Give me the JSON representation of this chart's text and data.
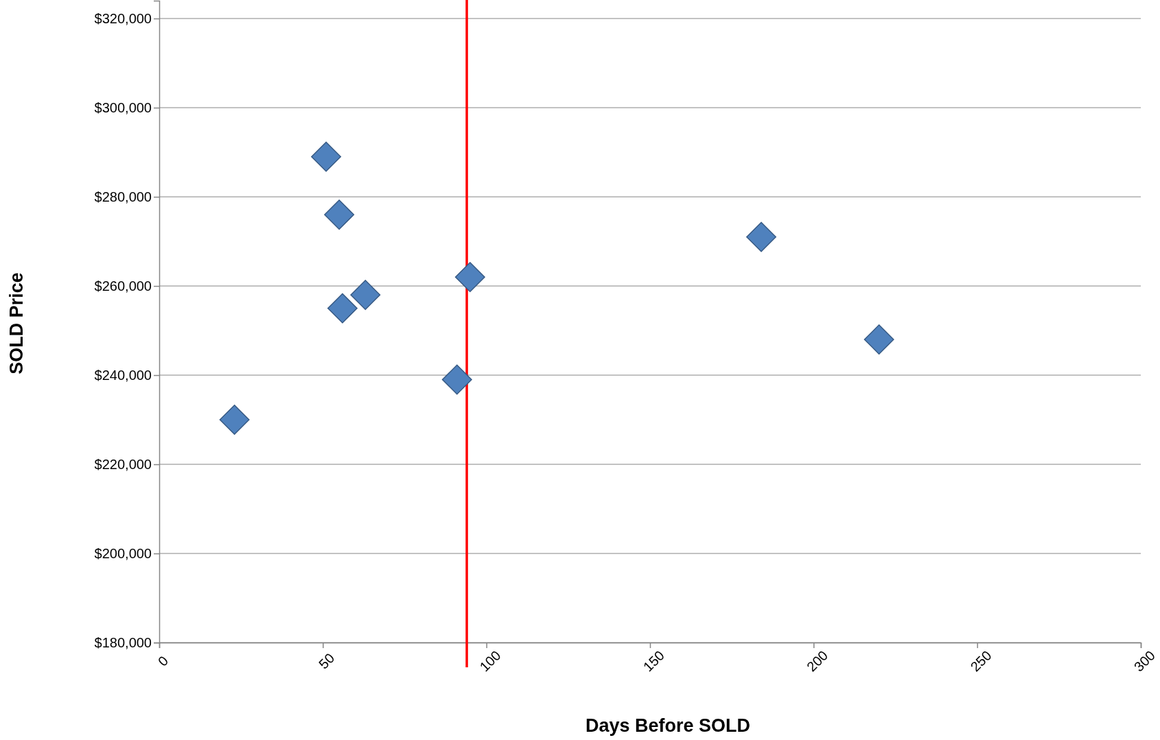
{
  "chart_data": {
    "type": "scatter",
    "xlabel": "Days Before SOLD",
    "ylabel": "SOLD Price",
    "x": [
      23,
      51,
      55,
      56,
      63,
      91,
      95,
      184,
      220
    ],
    "series": [
      {
        "color": "#4f81bd",
        "values": [
          230000,
          289000,
          276000,
          255000,
          258000,
          239000,
          262000,
          271000,
          248000
        ]
      }
    ],
    "xlim": [
      0,
      300
    ],
    "xticks": [
      0,
      50,
      100,
      150,
      200,
      250,
      300
    ],
    "ylim": [
      180000,
      324000
    ],
    "yticks": [
      {
        "value": 180000,
        "label": "$180,000"
      },
      {
        "value": 200000,
        "label": "$200,000"
      },
      {
        "value": 220000,
        "label": "$220,000"
      },
      {
        "value": 240000,
        "label": "$240,000"
      },
      {
        "value": 260000,
        "label": "$260,000"
      },
      {
        "value": 280000,
        "label": "$280,000"
      },
      {
        "value": 300000,
        "label": "$300,000"
      },
      {
        "value": 320000,
        "label": "$320,000"
      }
    ],
    "grid": "y",
    "marker": "diamond",
    "ref_lines": [
      {
        "axis": "x",
        "value": 94,
        "color": "#ff0000"
      }
    ]
  }
}
